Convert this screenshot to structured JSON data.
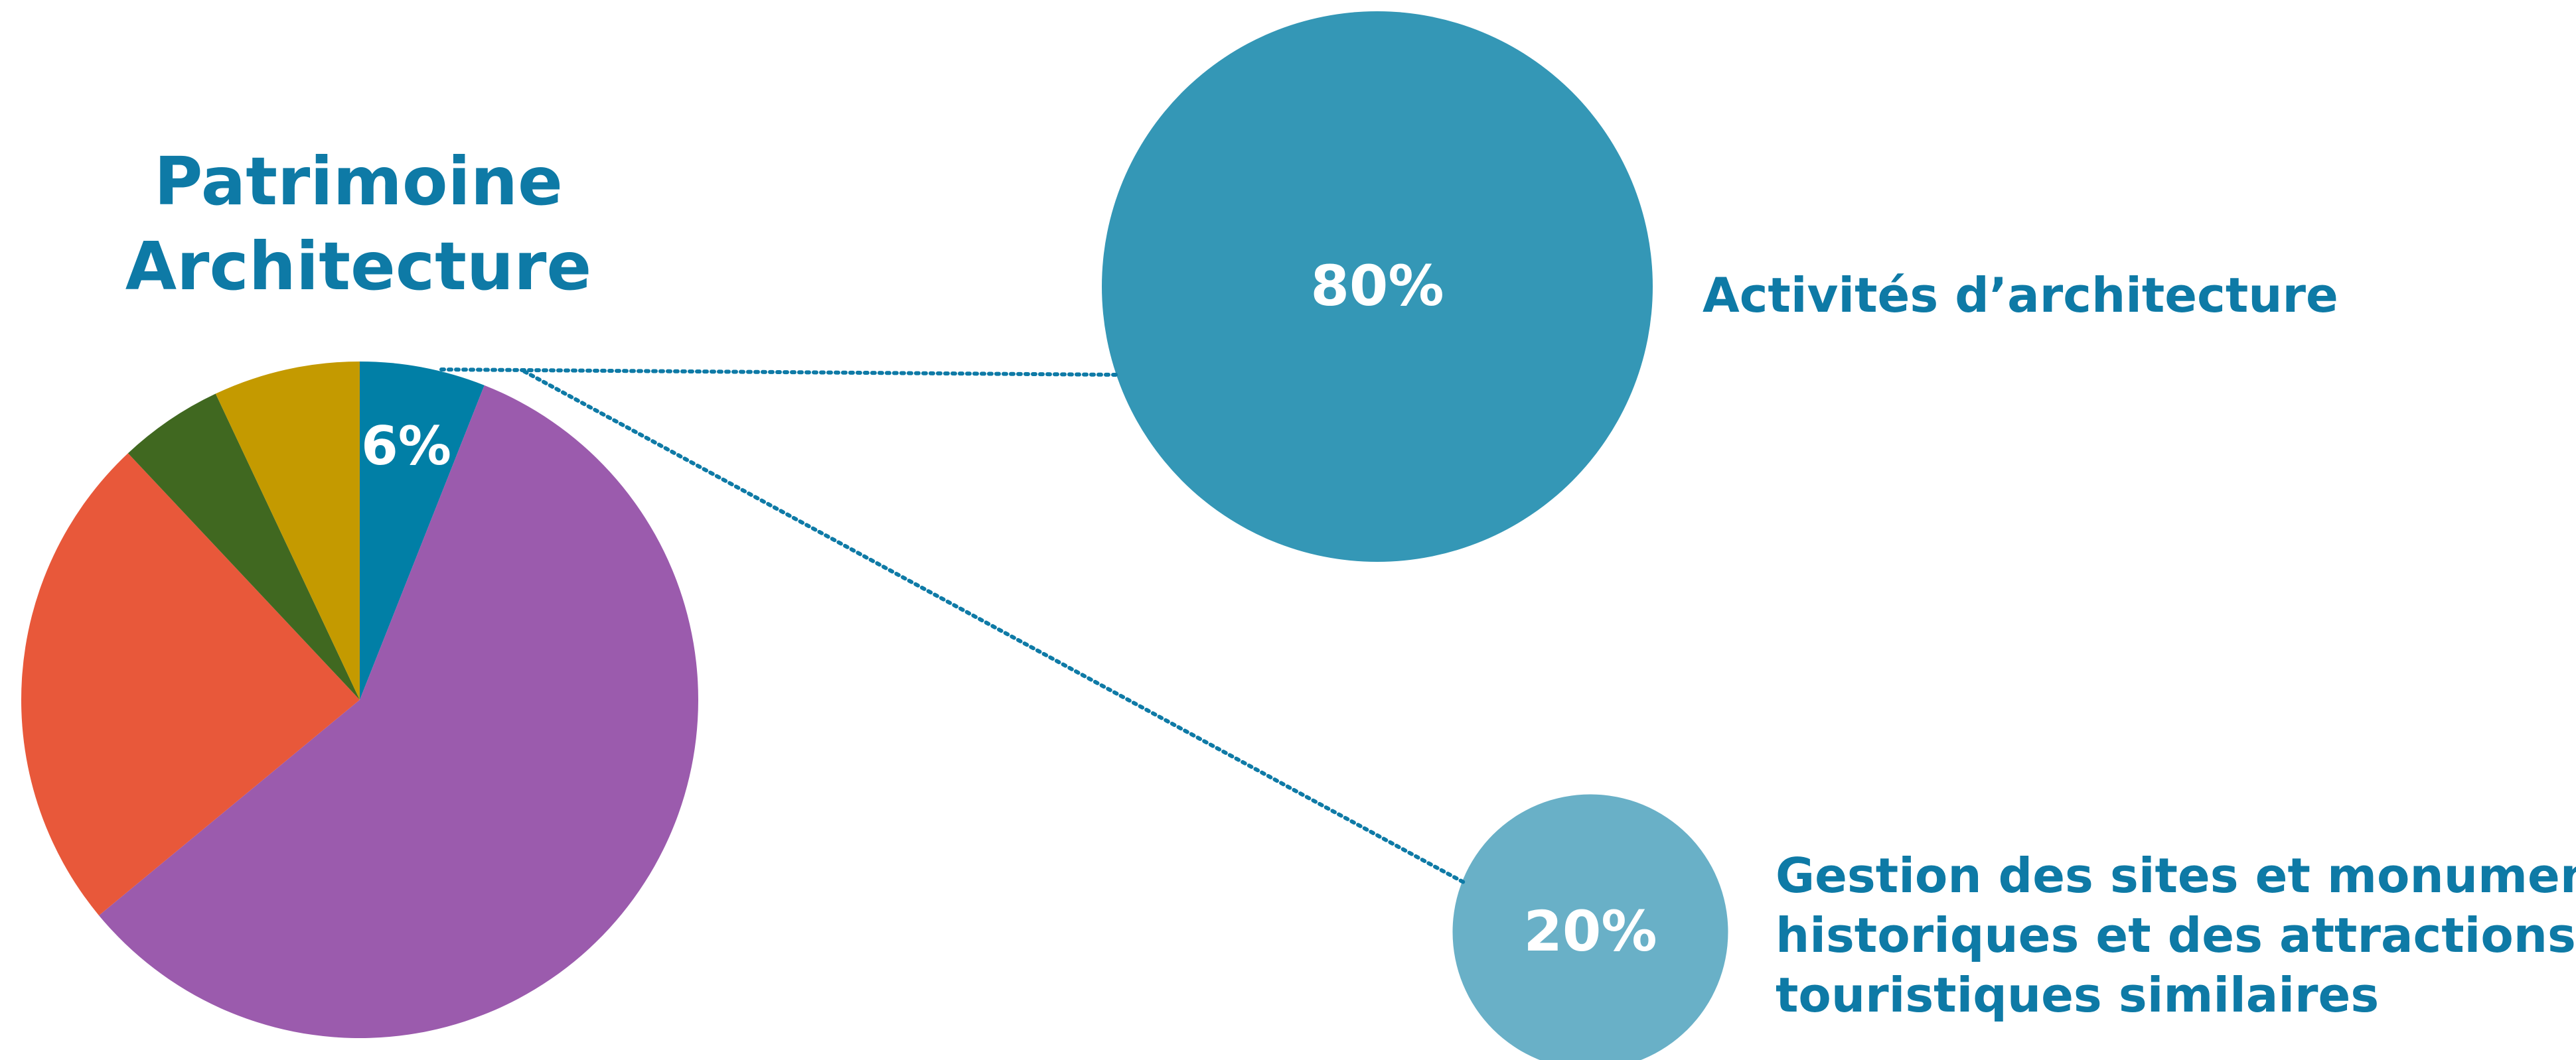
{
  "colors": {
    "title": "#0e7aa6",
    "connector": "#0e7aa6",
    "slice_highlight": "#017fa6",
    "slice_purple": "#9b5bad",
    "slice_orange": "#e8583a",
    "slice_green": "#406820",
    "slice_gold": "#c49a00",
    "bubble_large": "#3497b6",
    "bubble_small": "#69b0c7",
    "value_text": "#ffffff"
  },
  "chart_data": [
    {
      "type": "pie",
      "title_lines": [
        "Patrimoine",
        "Architecture"
      ],
      "slices": [
        {
          "name": "Patrimoine Architecture",
          "label": "6%",
          "value": 6,
          "color": "#017fa6"
        },
        {
          "name": "",
          "label": "",
          "value": 58,
          "color": "#9b5bad"
        },
        {
          "name": "",
          "label": "",
          "value": 24,
          "color": "#e8583a"
        },
        {
          "name": "",
          "label": "",
          "value": 5,
          "color": "#406820"
        },
        {
          "name": "",
          "label": "",
          "value": 7,
          "color": "#c49a00"
        }
      ]
    },
    {
      "type": "bubble",
      "breakdown_of": "Patrimoine Architecture",
      "items": [
        {
          "label": "Activités d’architecture",
          "value": 80,
          "value_label": "80%",
          "color": "#3497b6"
        },
        {
          "label_lines": [
            "Gestion des sites et monuments",
            "historiques et des attractions",
            "touristiques similaires"
          ],
          "value": 20,
          "value_label": "20%",
          "color": "#69b0c7"
        }
      ]
    }
  ]
}
